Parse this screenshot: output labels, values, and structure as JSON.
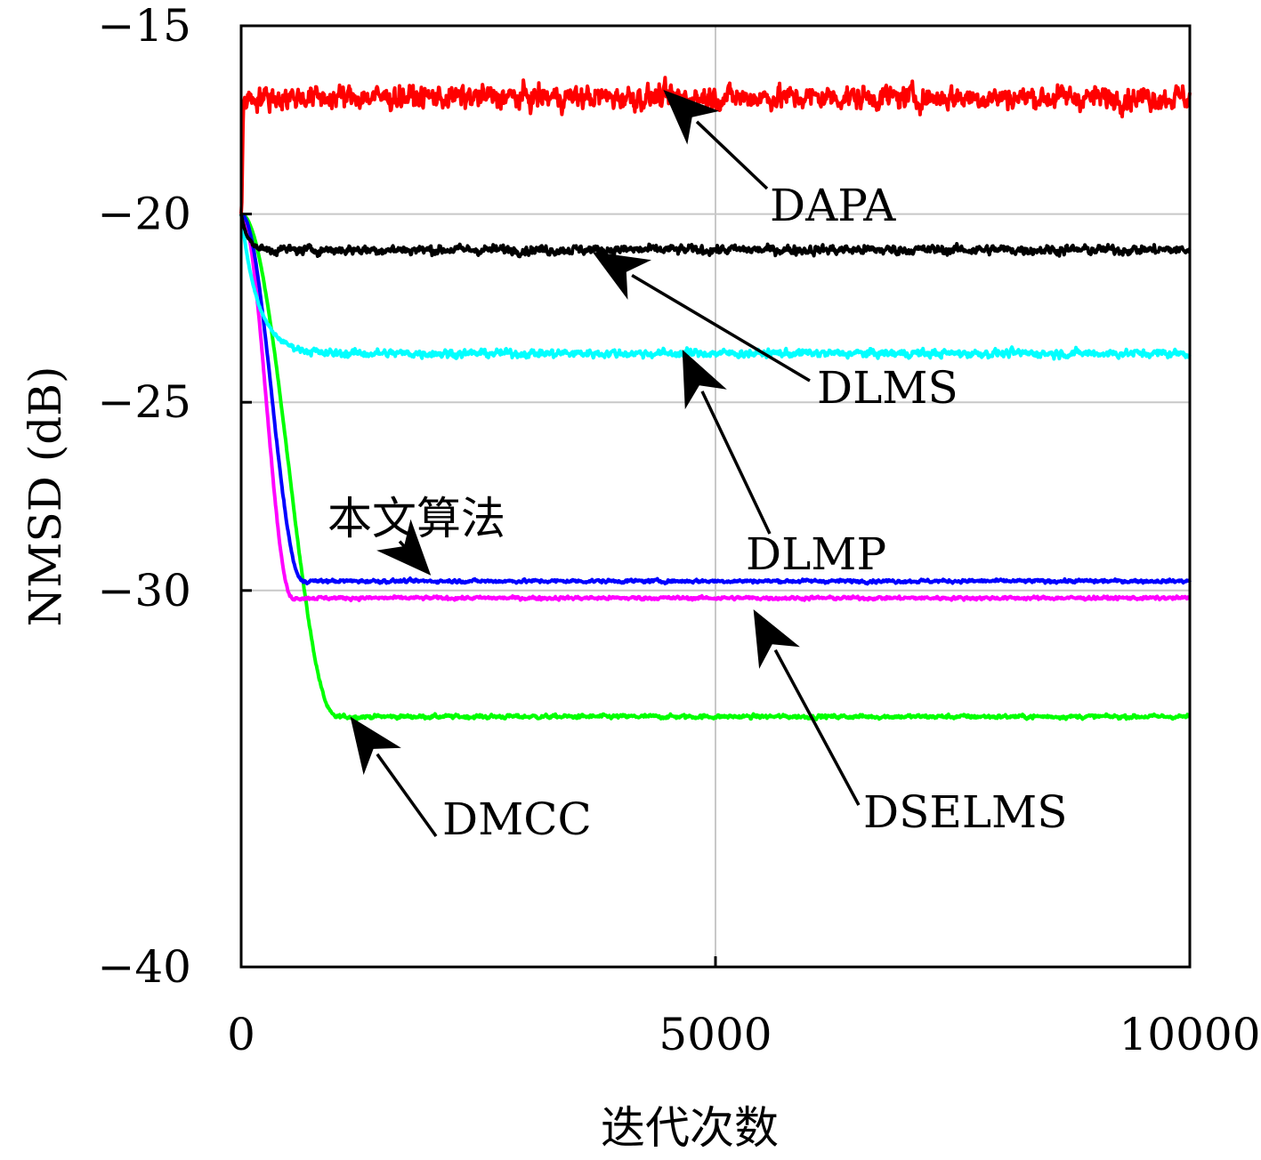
{
  "chart_data": {
    "type": "line",
    "xlabel": "迭代次数",
    "ylabel": "NMSD (dB)",
    "xlim": [
      0,
      10000
    ],
    "ylim": [
      -40,
      -15
    ],
    "x_ticks": [
      0,
      5000,
      10000
    ],
    "x_tick_labels": [
      "0",
      "5000",
      "10000"
    ],
    "y_ticks": [
      -15,
      -20,
      -25,
      -30,
      -40
    ],
    "y_tick_labels": [
      "−15",
      "−20",
      "−25",
      "−30",
      "−40"
    ],
    "grid": true,
    "series": [
      {
        "name": "DAPA",
        "color": "#ff0000",
        "start": -20.0,
        "steady": -16.9,
        "transition_end": 30,
        "noise": 0.35
      },
      {
        "name": "DLMS",
        "color": "#000000",
        "start": -20.0,
        "steady": -20.95,
        "transition_end": 300,
        "noise": 0.14
      },
      {
        "name": "DLMP",
        "color": "#00ffff",
        "start": -20.0,
        "steady": -23.7,
        "transition_end": 800,
        "noise": 0.12
      },
      {
        "name": "本文算法",
        "color": "#0000ff",
        "start": -20.0,
        "steady": -29.75,
        "transition_end": 650,
        "noise": 0.05
      },
      {
        "name": "DSELMS",
        "color": "#ff00ff",
        "start": -20.0,
        "steady": -30.2,
        "transition_end": 540,
        "noise": 0.05
      },
      {
        "name": "DMCC",
        "color": "#00ff00",
        "start": -20.0,
        "steady": -33.35,
        "transition_end": 1000,
        "noise": 0.06
      }
    ],
    "annotations": [
      {
        "label": "DAPA",
        "series": "DAPA",
        "target": [
          4450,
          -16.7
        ]
      },
      {
        "label": "DLMS",
        "series": "DLMS",
        "target": [
          3700,
          -21.0
        ]
      },
      {
        "label": "DLMP",
        "series": "DLMP",
        "target": [
          4650,
          -23.6
        ]
      },
      {
        "label": "本文算法",
        "series": "本文算法",
        "target": [
          2000,
          -29.6
        ]
      },
      {
        "label": "DSELMS",
        "series": "DSELMS",
        "target": [
          5400,
          -30.5
        ]
      },
      {
        "label": "DMCC",
        "series": "DMCC",
        "target": [
          1150,
          -33.35
        ]
      }
    ]
  }
}
